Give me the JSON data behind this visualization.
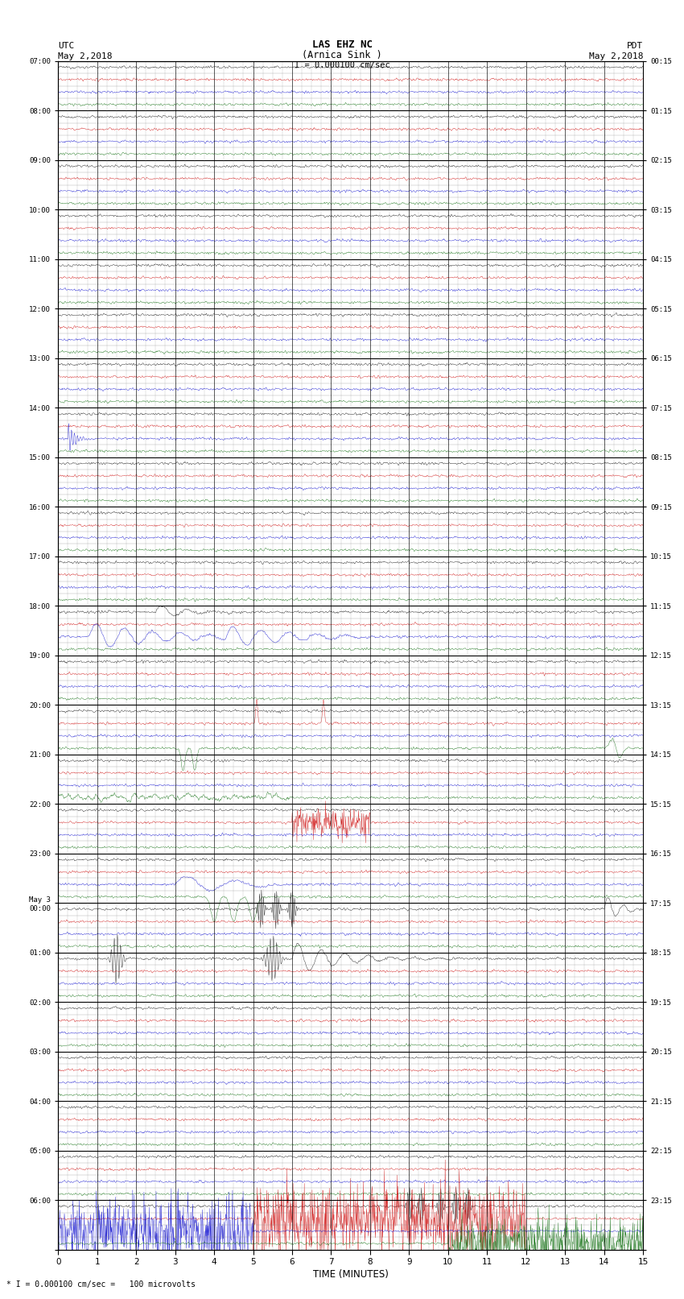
{
  "title_line1": "LAS EHZ NC",
  "title_line2": "(Arnica Sink )",
  "scale_label": "I = 0.000100 cm/sec",
  "left_label_line1": "UTC",
  "left_label_line2": "May 2,2018",
  "right_label_line1": "PDT",
  "right_label_line2": "May 2,2018",
  "bottom_label": "* I = 0.000100 cm/sec =   100 microvolts",
  "xlabel": "TIME (MINUTES)",
  "utc_times": [
    "07:00",
    "08:00",
    "09:00",
    "10:00",
    "11:00",
    "12:00",
    "13:00",
    "14:00",
    "15:00",
    "16:00",
    "17:00",
    "18:00",
    "19:00",
    "20:00",
    "21:00",
    "22:00",
    "23:00",
    "May 3\n00:00",
    "01:00",
    "02:00",
    "03:00",
    "04:00",
    "05:00",
    "06:00"
  ],
  "pdt_times": [
    "00:15",
    "01:15",
    "02:15",
    "03:15",
    "04:15",
    "05:15",
    "06:15",
    "07:15",
    "08:15",
    "09:15",
    "10:15",
    "11:15",
    "12:15",
    "13:15",
    "14:15",
    "15:15",
    "16:15",
    "17:15",
    "18:15",
    "19:15",
    "20:15",
    "21:15",
    "22:15",
    "23:15"
  ],
  "n_rows": 24,
  "n_minutes": 15,
  "sub_rows": 4,
  "background_color": "#ffffff",
  "major_grid_color": "#000000",
  "minor_grid_color": "#aaaaaa"
}
